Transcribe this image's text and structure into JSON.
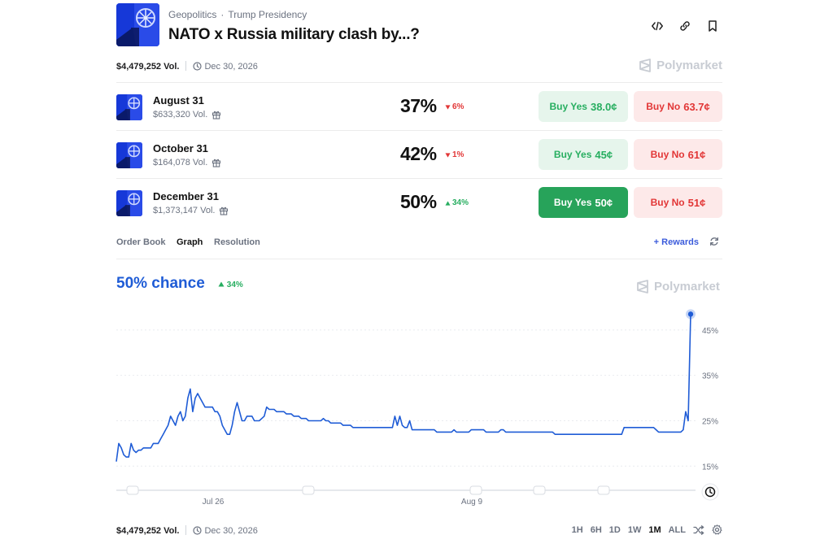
{
  "header": {
    "category": "Geopolitics",
    "separator": "·",
    "subcategory": "Trump Presidency",
    "title": "NATO x Russia military clash by...?",
    "icons": [
      "embed-icon",
      "link-icon",
      "bookmark-icon"
    ]
  },
  "summary": {
    "volume": "$4,479,252 Vol.",
    "end_date": "Dec 30, 2026",
    "brand": "Polymarket"
  },
  "outcomes": [
    {
      "name": "August 31",
      "volume": "$633,320 Vol.",
      "percent": "37%",
      "change": "6%",
      "direction": "down",
      "yes_label": "Buy Yes",
      "yes_price": "38.0¢",
      "no_label": "Buy No",
      "no_price": "63.7¢",
      "selected": false
    },
    {
      "name": "October 31",
      "volume": "$164,078 Vol.",
      "percent": "42%",
      "change": "1%",
      "direction": "down",
      "yes_label": "Buy Yes",
      "yes_price": "45¢",
      "no_label": "Buy No",
      "no_price": "61¢",
      "selected": false
    },
    {
      "name": "December 31",
      "volume": "$1,373,147 Vol.",
      "percent": "50%",
      "change": "34%",
      "direction": "up",
      "yes_label": "Buy Yes",
      "yes_price": "50¢",
      "no_label": "Buy No",
      "no_price": "51¢",
      "selected": true
    }
  ],
  "tabs": [
    {
      "label": "Order Book",
      "active": false
    },
    {
      "label": "Graph",
      "active": true
    },
    {
      "label": "Resolution",
      "active": false
    }
  ],
  "rewards_label": "+ Rewards",
  "graph": {
    "chance_label": "50% chance",
    "change": "34%",
    "brand": "Polymarket"
  },
  "chart_data": {
    "type": "line",
    "x_ticks": [
      "Jul 26",
      "Aug 9"
    ],
    "y_ticks": [
      "15%",
      "25%",
      "35%",
      "45%"
    ],
    "ylim": [
      12,
      50
    ],
    "grid": true,
    "series": [
      {
        "color": "#1f5cd6",
        "y": [
          16,
          20,
          19,
          17.5,
          17,
          17,
          20,
          18.5,
          18,
          18.5,
          18.5,
          19,
          19,
          19,
          19,
          20,
          20,
          20,
          21,
          22,
          23,
          24,
          26,
          25,
          24,
          26,
          27,
          25,
          26,
          30,
          32,
          27,
          30,
          31,
          30,
          29,
          28,
          28,
          28,
          28,
          27,
          27,
          26,
          24,
          23,
          22,
          22,
          24,
          27,
          29,
          27,
          25,
          25,
          26,
          26,
          26,
          25,
          25,
          25,
          25.5,
          26,
          28,
          27.5,
          27.5,
          27.5,
          27,
          27,
          27,
          27,
          26.5,
          26.5,
          26.5,
          26,
          26,
          26,
          25.5,
          25.5,
          25.5,
          25,
          25,
          25,
          25,
          25,
          25,
          25.5,
          25,
          25,
          24.5,
          24.5,
          24.5,
          24.5,
          24.5,
          24,
          24,
          24,
          24,
          23.5,
          23.5,
          23.5,
          23.5,
          23.5,
          23.5,
          23.5,
          23.5,
          23.5,
          23.5,
          23.5,
          23.5,
          23.5,
          23.5,
          23.5,
          23.5,
          23.5,
          26,
          24,
          26,
          24,
          23.5,
          23.5,
          25,
          23,
          23,
          23,
          23,
          23,
          23,
          23,
          23,
          23,
          23,
          22.5,
          22.5,
          22.5,
          22.5,
          22.5,
          22.5,
          22.5,
          23,
          22.5,
          22.5,
          22.5,
          22.5,
          22.5,
          22.5,
          23,
          23,
          23,
          23,
          23,
          23,
          22.5,
          22.5,
          22.5,
          22.5,
          22.5,
          22.5,
          23,
          23,
          22.5,
          22.5,
          22.5,
          22.5,
          22.5,
          22.5,
          22.5,
          22.5,
          22.5,
          22.5,
          22.5,
          22.5,
          22.5,
          22.5,
          22.5,
          22.5,
          22.5,
          22.5,
          22.5,
          22.5,
          22,
          22,
          22,
          22,
          22,
          22,
          22,
          22,
          22,
          22,
          22,
          22,
          22,
          22,
          22,
          22,
          22,
          22,
          22,
          22,
          22,
          22,
          22,
          22,
          22,
          22,
          22,
          22,
          23.5,
          23.5,
          23.5,
          23.5,
          23.5,
          23.5,
          23.5,
          23.5,
          23.5,
          23.5,
          23.5,
          23.5,
          23.5,
          23,
          22.5,
          22.5,
          22.5,
          22.5,
          22.5,
          22.5,
          22.5,
          22.5,
          22.5,
          22.5,
          23,
          27,
          25,
          48.5
        ]
      }
    ]
  },
  "footer": {
    "volume": "$4,479,252 Vol.",
    "end_date": "Dec 30, 2026",
    "ranges": [
      {
        "label": "1H",
        "active": false
      },
      {
        "label": "6H",
        "active": false
      },
      {
        "label": "1D",
        "active": false
      },
      {
        "label": "1W",
        "active": false
      },
      {
        "label": "1M",
        "active": true
      },
      {
        "label": "ALL",
        "active": false
      }
    ]
  }
}
